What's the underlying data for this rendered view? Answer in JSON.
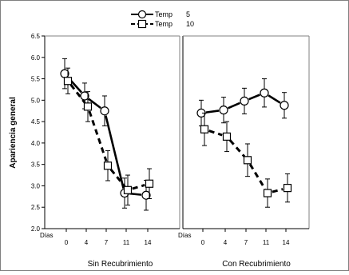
{
  "legend": {
    "items": [
      {
        "label": "Temp",
        "value": "5",
        "marker": "circle",
        "line": "solid"
      },
      {
        "label": "Temp",
        "value": "10",
        "marker": "square",
        "line": "dashed"
      }
    ]
  },
  "chart_data": {
    "type": "line",
    "ylabel": "Apariencia general",
    "ylim": [
      2.0,
      6.5
    ],
    "yticks": [
      "2.0",
      "2.5",
      "3.0",
      "3.5",
      "4.0",
      "4.5",
      "5.0",
      "5.5",
      "6.0",
      "6.5"
    ],
    "x_axis_title": "Días",
    "categories": [
      "0",
      "4",
      "7",
      "11",
      "14"
    ],
    "colors": {
      "line": "#000000",
      "frame": "#808080"
    },
    "panels": [
      {
        "xlabel": "Sin Recubrimiento",
        "series": [
          {
            "legend_index": 0,
            "values": [
              5.62,
              5.1,
              4.75,
              2.83,
              2.78
            ],
            "errors": [
              0.35,
              0.3,
              0.35,
              0.35,
              0.35
            ]
          },
          {
            "legend_index": 1,
            "values": [
              5.45,
              4.85,
              3.47,
              2.9,
              3.05
            ],
            "errors": [
              0.3,
              0.35,
              0.35,
              0.35,
              0.35
            ]
          }
        ]
      },
      {
        "xlabel": "Con Recubrimiento",
        "series": [
          {
            "legend_index": 0,
            "values": [
              4.7,
              4.77,
              4.98,
              5.17,
              4.88
            ],
            "errors": [
              0.3,
              0.3,
              0.3,
              0.33,
              0.3
            ]
          },
          {
            "legend_index": 1,
            "values": [
              4.32,
              4.15,
              3.6,
              2.83,
              2.95
            ],
            "errors": [
              0.38,
              0.35,
              0.38,
              0.33,
              0.33
            ]
          }
        ]
      }
    ]
  }
}
